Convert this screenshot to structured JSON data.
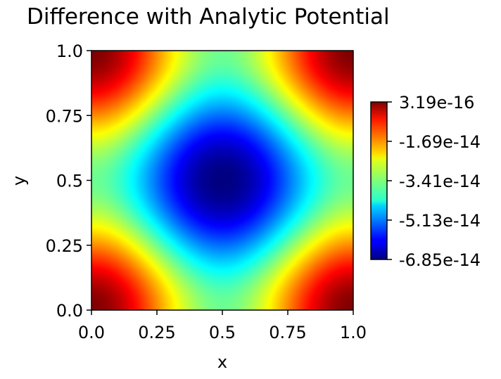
{
  "chart_data": {
    "type": "heatmap",
    "title": "Difference with Analytic Potential",
    "xlabel": "x",
    "ylabel": "y",
    "xlim": [
      0.0,
      1.0
    ],
    "ylim": [
      0.0,
      1.0
    ],
    "xticks": [
      "0.0",
      "0.25",
      "0.5",
      "0.75",
      "1.0"
    ],
    "yticks": [
      "0.0",
      "0.25",
      "0.5",
      "0.75",
      "1.0"
    ],
    "grid": false,
    "colormap": "jet",
    "colorbar": {
      "min": -6.85e-14,
      "max": 3.19e-16,
      "tick_labels": [
        "3.19e-16",
        "-1.69e-14",
        "-3.41e-14",
        "-5.13e-14",
        "-6.85e-14"
      ]
    },
    "field": {
      "description_of_shape": "cosine pattern: maxima at the four corners, minimum at center",
      "x_range": [
        0.0,
        1.0
      ],
      "y_range": [
        0.0,
        1.0
      ]
    }
  }
}
